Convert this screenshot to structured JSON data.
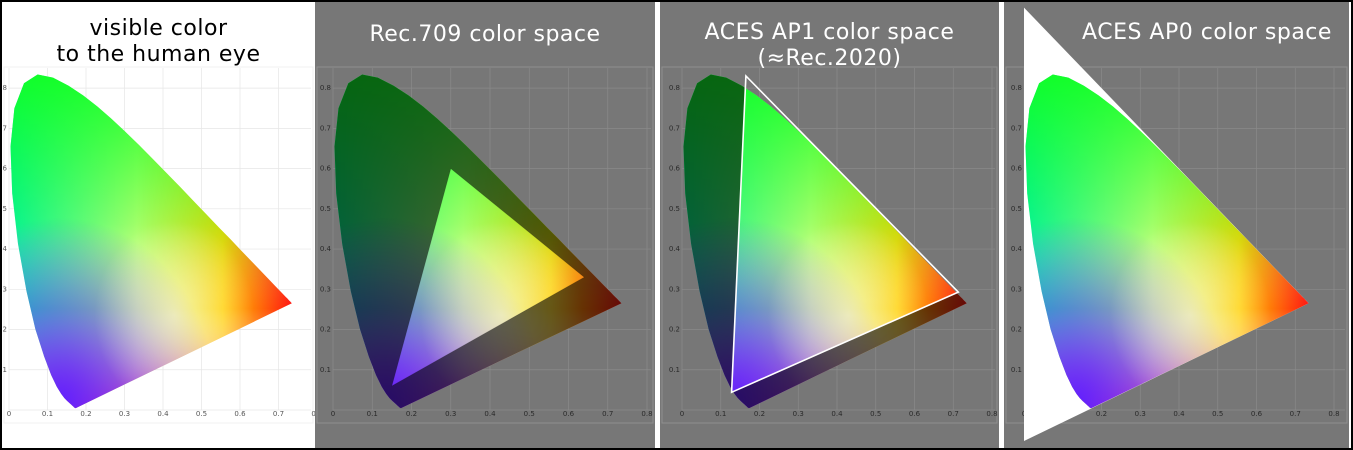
{
  "panels": [
    {
      "title_lines": [
        "visible color",
        "to the human eye"
      ],
      "theme": "white",
      "color_space": "",
      "primaries": null
    },
    {
      "title_lines": [
        "Rec.709 color space"
      ],
      "theme": "gray",
      "color_space": "Rec.709",
      "primaries": [
        [
          0.64,
          0.33
        ],
        [
          0.3,
          0.6
        ],
        [
          0.15,
          0.06
        ]
      ]
    },
    {
      "title_lines": [
        "ACES AP1 color space",
        "(≈Rec.2020)"
      ],
      "theme": "gray",
      "color_space": "ACES AP1",
      "primaries": [
        [
          0.713,
          0.293
        ],
        [
          0.165,
          0.83
        ],
        [
          0.128,
          0.044
        ]
      ]
    },
    {
      "title_lines": [
        "ACES AP0 color space"
      ],
      "theme": "gray",
      "color_space": "ACES AP0",
      "primaries": [
        [
          0.7347,
          0.2653
        ],
        [
          0.0,
          1.0
        ],
        [
          0.0001,
          -0.077
        ]
      ]
    }
  ],
  "axis": {
    "x_ticks": [
      "0",
      "0.1",
      "0.2",
      "0.3",
      "0.4",
      "0.5",
      "0.6",
      "0.7",
      "0.8"
    ],
    "y_ticks": [
      "0",
      "0.1",
      "0.2",
      "0.3",
      "0.4",
      "0.5",
      "0.6",
      "0.7",
      "0.8"
    ],
    "xlim": [
      0,
      0.8
    ],
    "ylim": [
      0,
      0.85
    ]
  },
  "colors": {
    "panel_gray": "#777777",
    "white_bg": "#ffffff",
    "gamut_outline": "#ffffff",
    "red": "#ff1010",
    "green": "#10ff20",
    "blue": "#6020ff",
    "cyan": "#00f0b0",
    "magenta": "#ff20a0",
    "yellow": "#ffd000"
  },
  "locus": [
    [
      0.1741,
      0.005
    ],
    [
      0.1738,
      0.0049
    ],
    [
      0.1736,
      0.0049
    ],
    [
      0.1733,
      0.0048
    ],
    [
      0.173,
      0.0048
    ],
    [
      0.1726,
      0.0048
    ],
    [
      0.1721,
      0.0048
    ],
    [
      0.1714,
      0.0051
    ],
    [
      0.1703,
      0.0058
    ],
    [
      0.1689,
      0.0069
    ],
    [
      0.1669,
      0.0086
    ],
    [
      0.1644,
      0.0109
    ],
    [
      0.1611,
      0.0138
    ],
    [
      0.1566,
      0.0177
    ],
    [
      0.151,
      0.0227
    ],
    [
      0.144,
      0.0297
    ],
    [
      0.1355,
      0.0399
    ],
    [
      0.1241,
      0.0578
    ],
    [
      0.1096,
      0.0868
    ],
    [
      0.0913,
      0.1327
    ],
    [
      0.0687,
      0.2007
    ],
    [
      0.0454,
      0.295
    ],
    [
      0.0235,
      0.4127
    ],
    [
      0.0082,
      0.5384
    ],
    [
      0.0039,
      0.6548
    ],
    [
      0.0139,
      0.7502
    ],
    [
      0.0389,
      0.812
    ],
    [
      0.0743,
      0.8338
    ],
    [
      0.1142,
      0.8262
    ],
    [
      0.1547,
      0.8059
    ],
    [
      0.1929,
      0.7816
    ],
    [
      0.2296,
      0.7543
    ],
    [
      0.2658,
      0.7243
    ],
    [
      0.3016,
      0.6923
    ],
    [
      0.3373,
      0.6589
    ],
    [
      0.3731,
      0.6245
    ],
    [
      0.4087,
      0.5896
    ],
    [
      0.4441,
      0.5547
    ],
    [
      0.4788,
      0.5202
    ],
    [
      0.5125,
      0.4866
    ],
    [
      0.5448,
      0.4544
    ],
    [
      0.5752,
      0.4242
    ],
    [
      0.6029,
      0.3965
    ],
    [
      0.627,
      0.3725
    ],
    [
      0.6482,
      0.3514
    ],
    [
      0.6658,
      0.334
    ],
    [
      0.6801,
      0.3197
    ],
    [
      0.6915,
      0.3083
    ],
    [
      0.7006,
      0.2993
    ],
    [
      0.7079,
      0.292
    ],
    [
      0.714,
      0.2859
    ],
    [
      0.719,
      0.2809
    ],
    [
      0.723,
      0.277
    ],
    [
      0.726,
      0.274
    ],
    [
      0.7283,
      0.2717
    ],
    [
      0.73,
      0.27
    ],
    [
      0.7311,
      0.2689
    ],
    [
      0.732,
      0.268
    ],
    [
      0.7327,
      0.2673
    ],
    [
      0.7334,
      0.2666
    ],
    [
      0.734,
      0.266
    ],
    [
      0.7344,
      0.2656
    ],
    [
      0.7346,
      0.2654
    ],
    [
      0.7347,
      0.2653
    ]
  ]
}
